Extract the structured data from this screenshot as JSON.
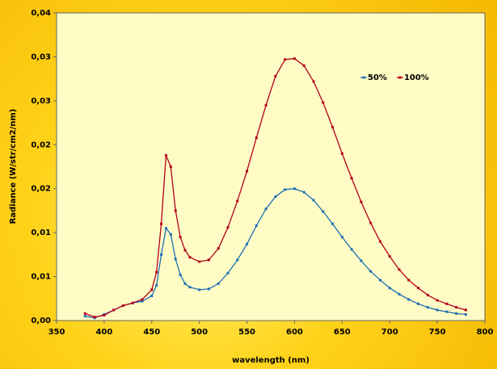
{
  "chart_data": {
    "type": "line",
    "ylabel": "Radiance (W/str/cm2/nm)",
    "xlabel": "wavelength (nm)",
    "x": [
      380,
      390,
      400,
      410,
      420,
      430,
      440,
      450,
      455,
      460,
      465,
      470,
      475,
      480,
      485,
      490,
      500,
      510,
      520,
      530,
      540,
      550,
      560,
      570,
      580,
      590,
      600,
      610,
      620,
      630,
      640,
      650,
      660,
      670,
      680,
      690,
      700,
      710,
      720,
      730,
      740,
      750,
      760,
      770,
      780
    ],
    "series": [
      {
        "name": "50%",
        "color": "#1f6fb5",
        "values": [
          0.0005,
          0.0003,
          0.0007,
          0.0012,
          0.0017,
          0.002,
          0.0022,
          0.0028,
          0.004,
          0.0075,
          0.0105,
          0.0098,
          0.007,
          0.0052,
          0.0042,
          0.0038,
          0.0035,
          0.0036,
          0.0042,
          0.0054,
          0.0069,
          0.0087,
          0.0108,
          0.0127,
          0.0141,
          0.0149,
          0.015,
          0.0146,
          0.0137,
          0.0124,
          0.011,
          0.0095,
          0.0081,
          0.0068,
          0.0056,
          0.0046,
          0.0037,
          0.003,
          0.0024,
          0.0019,
          0.0015,
          0.0012,
          0.001,
          0.0008,
          0.0007
        ]
      },
      {
        "name": "100%",
        "color": "#b3001b",
        "values": [
          0.0008,
          0.0004,
          0.0006,
          0.0012,
          0.0017,
          0.002,
          0.0024,
          0.0035,
          0.0055,
          0.011,
          0.0188,
          0.0175,
          0.0125,
          0.0095,
          0.008,
          0.0072,
          0.0067,
          0.0069,
          0.0082,
          0.0106,
          0.0136,
          0.017,
          0.0208,
          0.0245,
          0.0278,
          0.0297,
          0.0298,
          0.029,
          0.0272,
          0.0248,
          0.022,
          0.019,
          0.0162,
          0.0135,
          0.0111,
          0.009,
          0.0073,
          0.0058,
          0.0046,
          0.0037,
          0.0029,
          0.0023,
          0.0019,
          0.0015,
          0.0012
        ]
      }
    ],
    "xlim": [
      350,
      800
    ],
    "xticks": [
      350,
      400,
      450,
      500,
      550,
      600,
      650,
      700,
      750,
      800
    ],
    "ylim": [
      0,
      0.035
    ],
    "yticks": [
      {
        "value": 0,
        "label": "0,00"
      },
      {
        "value": 0.005,
        "label": "0,01"
      },
      {
        "value": 0.01,
        "label": "0,01"
      },
      {
        "value": 0.015,
        "label": "0,02"
      },
      {
        "value": 0.02,
        "label": "0,02"
      },
      {
        "value": 0.025,
        "label": "0,03"
      },
      {
        "value": 0.03,
        "label": "0,03"
      },
      {
        "value": 0.035,
        "label": "0,04"
      }
    ],
    "legend": "upper right",
    "grid": false
  }
}
